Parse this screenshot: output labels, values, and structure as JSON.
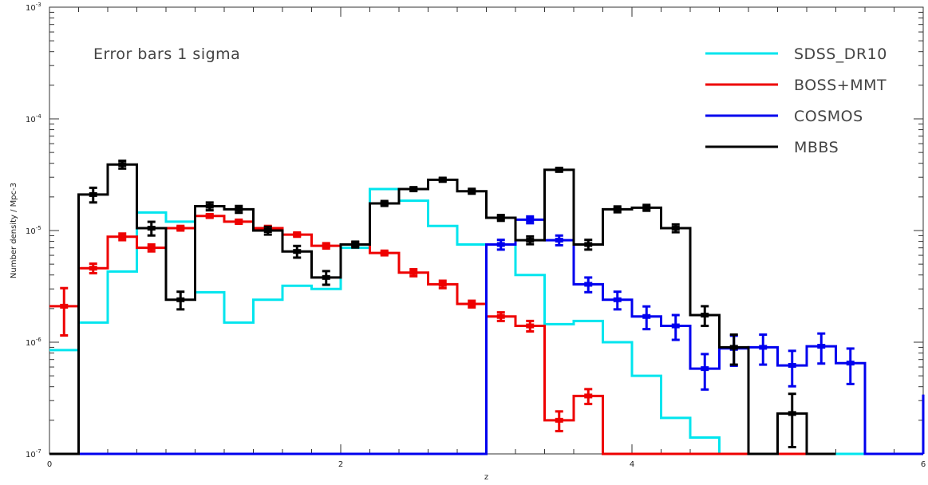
{
  "chart_data": {
    "type": "line",
    "step": true,
    "xlabel": "z",
    "ylabel": "Number density / Mpc-3",
    "xlim": [
      0,
      6
    ],
    "ylim": [
      1e-07,
      0.001
    ],
    "yscale": "log",
    "grid": false,
    "legend_position": "top-right",
    "annotation": "Error bars 1 sigma",
    "x_ticks": [
      {
        "value": 0,
        "label": "0"
      },
      {
        "value": 2,
        "label": "2"
      },
      {
        "value": 4,
        "label": "4"
      },
      {
        "value": 6,
        "label": "6"
      }
    ],
    "y_ticks": [
      {
        "value": 1e-07,
        "label_base": "10",
        "label_exp": "-7"
      },
      {
        "value": 1e-06,
        "label_base": "10",
        "label_exp": "-6"
      },
      {
        "value": 1e-05,
        "label_base": "10",
        "label_exp": "-5"
      },
      {
        "value": 0.0001,
        "label_base": "10",
        "label_exp": "-4"
      },
      {
        "value": 0.001,
        "label_base": "10",
        "label_exp": "-3"
      }
    ],
    "series": [
      {
        "name": "SDSS_DR10",
        "color": "#00e5ee",
        "bin_width": 0.2,
        "x": [
          0.1,
          0.3,
          0.5,
          0.7,
          0.9,
          1.1,
          1.3,
          1.5,
          1.7,
          1.9,
          2.1,
          2.3,
          2.5,
          2.7,
          2.9,
          3.1,
          3.3,
          3.5,
          3.7,
          3.9,
          4.1,
          4.3,
          4.5,
          4.7,
          4.9,
          5.1,
          5.3,
          5.5,
          5.7,
          5.9
        ],
        "y": [
          8.5e-07,
          1.5e-06,
          4.3e-06,
          1.45e-05,
          1.2e-05,
          2.8e-06,
          1.5e-06,
          2.4e-06,
          3.2e-06,
          3e-06,
          7e-06,
          2.35e-05,
          1.85e-05,
          1.1e-05,
          7.5e-06,
          7.5e-06,
          4e-06,
          1.45e-06,
          1.55e-06,
          1e-06,
          5e-07,
          2.1e-07,
          1.4e-07,
          1e-07,
          1e-07,
          1e-07,
          1e-07,
          1e-07,
          1e-07,
          1e-07
        ]
      },
      {
        "name": "BOSS+MMT",
        "color": "#ee0000",
        "bin_width": 0.2,
        "x": [
          0.1,
          0.3,
          0.5,
          0.7,
          0.9,
          1.1,
          1.3,
          1.5,
          1.7,
          1.9,
          2.1,
          2.3,
          2.5,
          2.7,
          2.9,
          3.1,
          3.3,
          3.5,
          3.7,
          3.9,
          4.1,
          4.3,
          4.5,
          4.7,
          4.9,
          5.1,
          5.3
        ],
        "y": [
          2.1e-06,
          4.6e-06,
          8.8e-06,
          7e-06,
          1.05e-05,
          1.35e-05,
          1.2e-05,
          1.05e-05,
          9.2e-06,
          7.3e-06,
          7.5e-06,
          6.3e-06,
          4.2e-06,
          3.3e-06,
          2.2e-06,
          1.7e-06,
          1.4e-06,
          2e-07,
          3.3e-07,
          1e-07,
          1e-07,
          1e-07,
          1e-07,
          1e-07,
          1e-07,
          1e-07,
          1e-07
        ],
        "err": [
          0.0,
          4.5e-07,
          6e-07,
          5e-07,
          5e-07,
          5e-07,
          5e-07,
          5e-07,
          4e-07,
          4e-07,
          4e-07,
          3e-07,
          3e-07,
          2.5e-07,
          1.5e-07,
          1.5e-07,
          1.5e-07,
          4e-08,
          5e-08,
          0,
          0,
          0,
          0,
          0,
          0,
          0,
          0
        ],
        "err_low": [
          9.5e-07,
          4.5e-07,
          6e-07,
          5e-07,
          5e-07,
          5e-07,
          5e-07,
          5e-07,
          4e-07,
          4e-07,
          4e-07,
          3e-07,
          3e-07,
          2.5e-07,
          1.5e-07,
          1.5e-07,
          1.5e-07,
          4e-08,
          5e-08,
          0,
          0,
          0,
          0,
          0,
          0,
          0,
          0
        ],
        "err_high": [
          9.5e-07,
          4.5e-07,
          6e-07,
          5e-07,
          5e-07,
          5e-07,
          5e-07,
          5e-07,
          4e-07,
          4e-07,
          4e-07,
          3e-07,
          3e-07,
          2.5e-07,
          1.5e-07,
          1.5e-07,
          1.5e-07,
          4e-08,
          5e-08,
          0,
          0,
          0,
          0,
          0,
          0,
          0,
          0
        ],
        "error_bar_count": 19
      },
      {
        "name": "COSMOS",
        "color": "#0000ee",
        "bin_width": 0.2,
        "x": [
          0.1,
          0.3,
          0.5,
          0.7,
          0.9,
          1.1,
          1.3,
          1.5,
          1.7,
          1.9,
          2.1,
          2.3,
          2.5,
          2.7,
          2.9,
          3.1,
          3.3,
          3.5,
          3.7,
          3.9,
          4.1,
          4.3,
          4.5,
          4.7,
          4.9,
          5.1,
          5.3,
          5.5,
          5.7,
          5.9
        ],
        "y": [
          1e-07,
          1e-07,
          1e-07,
          1e-07,
          1e-07,
          1e-07,
          1e-07,
          1e-07,
          1e-07,
          1e-07,
          1e-07,
          1e-07,
          1e-07,
          1e-07,
          1e-07,
          7.5e-06,
          1.25e-05,
          8.2e-06,
          3.3e-06,
          2.4e-06,
          1.7e-06,
          1.4e-06,
          5.8e-07,
          8.8e-07,
          9e-07,
          6.2e-07,
          9.2e-07,
          6.5e-07,
          1e-07,
          1e-07
        ],
        "err_rel": [
          0,
          0,
          0,
          0,
          0,
          0,
          0,
          0,
          0,
          0,
          0,
          0,
          0,
          0,
          0,
          0.1,
          0.07,
          0.1,
          0.15,
          0.18,
          0.23,
          0.25,
          0.35,
          0.3,
          0.3,
          0.35,
          0.3,
          0.35,
          0,
          0
        ],
        "tail_x": 6.0,
        "tail_y": 3.4e-07
      },
      {
        "name": "MBBS",
        "color": "#000000",
        "bin_width": 0.2,
        "x": [
          0.1,
          0.3,
          0.5,
          0.7,
          0.9,
          1.1,
          1.3,
          1.5,
          1.7,
          1.9,
          2.1,
          2.3,
          2.5,
          2.7,
          2.9,
          3.1,
          3.3,
          3.5,
          3.7,
          3.9,
          4.1,
          4.3,
          4.5,
          4.7,
          4.9,
          5.1,
          5.3
        ],
        "y": [
          1e-07,
          2.1e-05,
          3.9e-05,
          1.05e-05,
          2.4e-06,
          1.65e-05,
          1.55e-05,
          1e-05,
          6.5e-06,
          3.8e-06,
          7.5e-06,
          1.75e-05,
          2.35e-05,
          2.85e-05,
          2.25e-05,
          1.3e-05,
          8.2e-06,
          3.5e-05,
          7.5e-06,
          1.55e-05,
          1.6e-05,
          1.05e-05,
          1.75e-06,
          9e-07,
          1e-07,
          2.3e-07,
          1e-07
        ],
        "err_rel": [
          0,
          0.15,
          0.08,
          0.14,
          0.18,
          0.08,
          0.07,
          0.08,
          0.12,
          0.14,
          0.06,
          0.05,
          0.04,
          0.04,
          0.05,
          0.06,
          0.08,
          0.04,
          0.1,
          0.06,
          0.06,
          0.08,
          0.2,
          0.3,
          0,
          0.5,
          0
        ]
      }
    ]
  }
}
